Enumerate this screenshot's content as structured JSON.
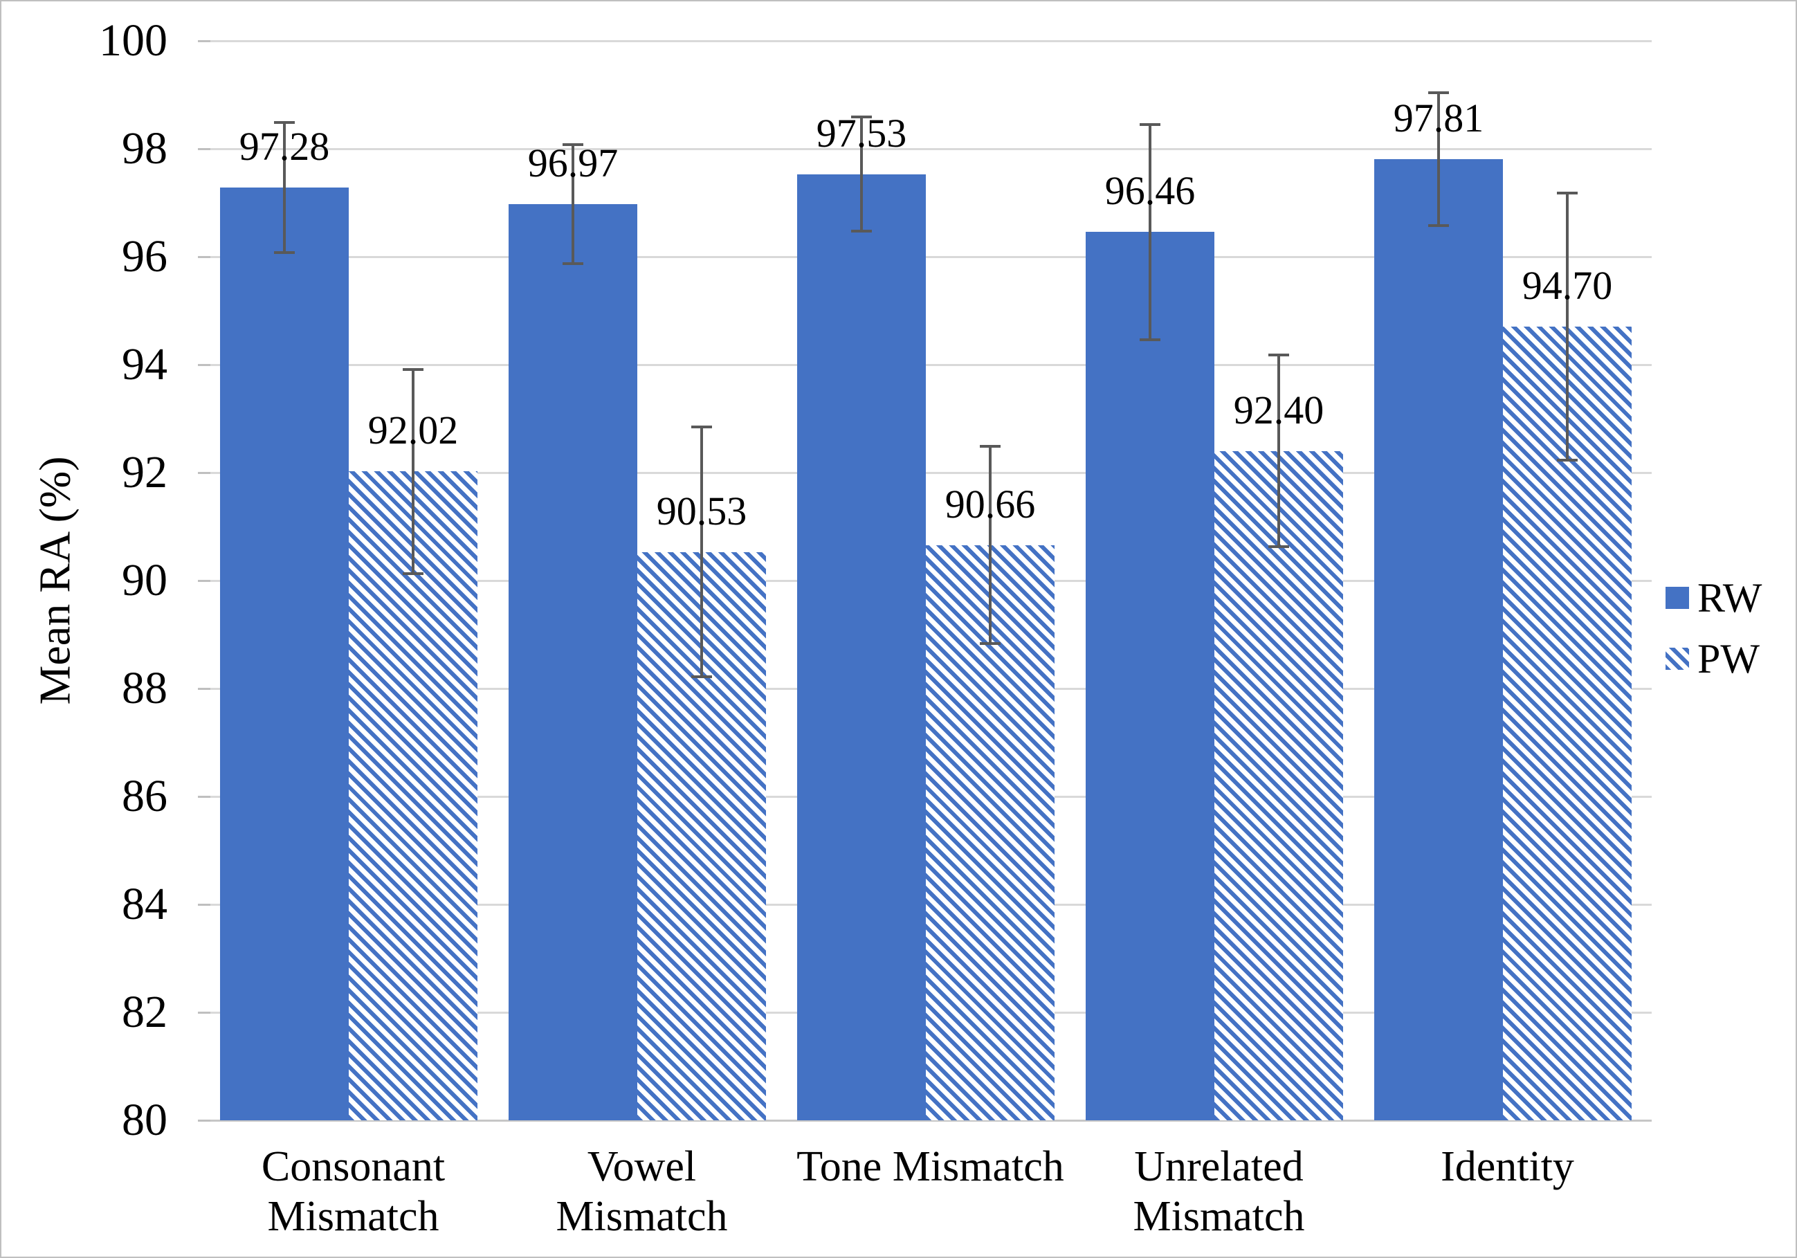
{
  "chart_data": {
    "type": "bar",
    "title": "",
    "ylabel": "Mean RA (%)",
    "xlabel": "",
    "ylim": [
      80,
      100
    ],
    "ytick_step": 2,
    "ytick_labels": [
      "100",
      "98",
      "96",
      "94",
      "92",
      "90",
      "88",
      "86",
      "84",
      "82",
      "80"
    ],
    "categories": [
      "Consonant\nMismatch",
      "Vowel\nMismatch",
      "Tone Mismatch",
      "Unrelated\nMismatch",
      "Identity"
    ],
    "series": [
      {
        "name": "RW",
        "pattern": "solid",
        "values": [
          97.28,
          96.97,
          97.53,
          96.46,
          97.81
        ],
        "labels": [
          "97.28",
          "96.97",
          "97.53",
          "96.46",
          "97.81"
        ],
        "error_bars": [
          1.23,
          1.13,
          1.08,
          2.02,
          1.26
        ]
      },
      {
        "name": "PW",
        "pattern": "diagonal-hatch",
        "values": [
          92.02,
          90.53,
          90.66,
          92.4,
          94.7
        ],
        "labels": [
          "92.02",
          "90.53",
          "90.66",
          "92.40",
          "94.70"
        ],
        "error_bars": [
          1.92,
          2.34,
          1.85,
          1.8,
          2.5
        ]
      }
    ],
    "legend_position": "right",
    "grid": true
  },
  "colors": {
    "bar_fill": "#4472C4",
    "hatch_background": "#FFFFFF",
    "error_bar": "#595959",
    "gridline": "#D9D9D9",
    "axis_line": "#C6C6C6",
    "tick_mark": "#BFBFBF",
    "text": "#000000",
    "chart_border": "#BFBFBF"
  }
}
